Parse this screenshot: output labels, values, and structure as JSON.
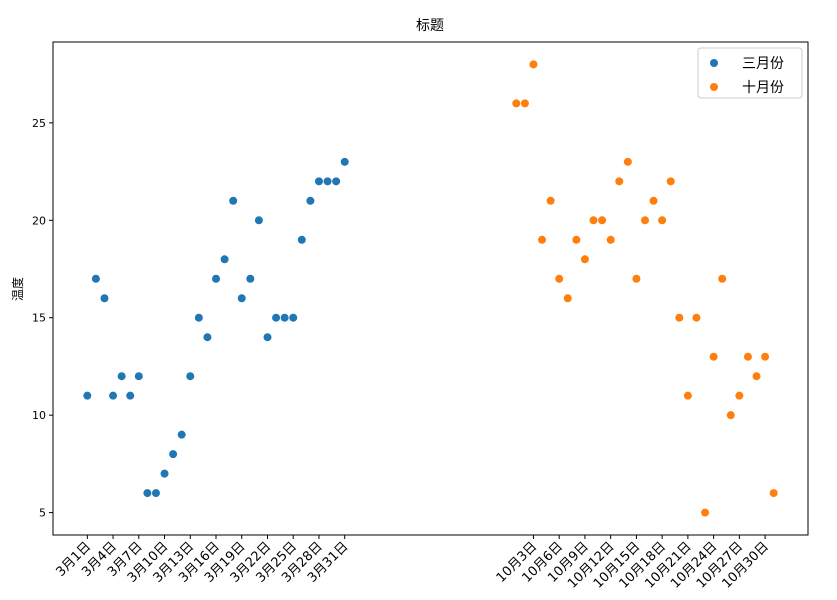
{
  "chart_data": {
    "type": "scatter",
    "title": "标题",
    "y_label": "温度",
    "series": [
      {
        "name": "三月份",
        "color": "#1f77b4",
        "x": [
          1,
          2,
          3,
          4,
          5,
          6,
          7,
          8,
          9,
          10,
          11,
          12,
          13,
          14,
          15,
          16,
          17,
          18,
          19,
          20,
          21,
          22,
          23,
          24,
          25,
          26,
          27,
          28,
          29,
          30,
          31
        ],
        "values": [
          11,
          17,
          16,
          11,
          12,
          11,
          12,
          6,
          6,
          7,
          8,
          9,
          12,
          15,
          14,
          17,
          18,
          21,
          16,
          17,
          20,
          14,
          15,
          15,
          15,
          19,
          21,
          22,
          22,
          22,
          23
        ]
      },
      {
        "name": "十月份",
        "color": "#ff7f0e",
        "x": [
          51,
          52,
          53,
          54,
          55,
          56,
          57,
          58,
          59,
          60,
          61,
          62,
          63,
          64,
          65,
          66,
          67,
          68,
          69,
          70,
          71,
          72,
          73,
          74,
          75,
          76,
          77,
          78,
          79,
          80,
          81
        ],
        "values": [
          26,
          26,
          28,
          19,
          21,
          17,
          16,
          19,
          18,
          20,
          20,
          19,
          22,
          23,
          17,
          20,
          21,
          20,
          22,
          15,
          11,
          15,
          5,
          13,
          17,
          10,
          11,
          13,
          12,
          13,
          6
        ]
      }
    ],
    "xlim": [
      -3,
      85
    ],
    "ylim": [
      3.85,
      29.15
    ],
    "xticks": [
      {
        "value": 1,
        "label": "3月1日"
      },
      {
        "value": 4,
        "label": "3月4日"
      },
      {
        "value": 7,
        "label": "3月7日"
      },
      {
        "value": 10,
        "label": "3月10日"
      },
      {
        "value": 13,
        "label": "3月13日"
      },
      {
        "value": 16,
        "label": "3月16日"
      },
      {
        "value": 19,
        "label": "3月19日"
      },
      {
        "value": 22,
        "label": "3月22日"
      },
      {
        "value": 25,
        "label": "3月25日"
      },
      {
        "value": 28,
        "label": "3月28日"
      },
      {
        "value": 31,
        "label": "3月31日"
      },
      {
        "value": 53,
        "label": "10月3日"
      },
      {
        "value": 56,
        "label": "10月6日"
      },
      {
        "value": 59,
        "label": "10月9日"
      },
      {
        "value": 62,
        "label": "10月12日"
      },
      {
        "value": 65,
        "label": "10月15日"
      },
      {
        "value": 68,
        "label": "10月18日"
      },
      {
        "value": 71,
        "label": "10月21日"
      },
      {
        "value": 74,
        "label": "10月24日"
      },
      {
        "value": 77,
        "label": "10月27日"
      },
      {
        "value": 80,
        "label": "10月30日"
      }
    ],
    "yticks": [
      5,
      10,
      15,
      20,
      25
    ],
    "legend": "upper right"
  }
}
